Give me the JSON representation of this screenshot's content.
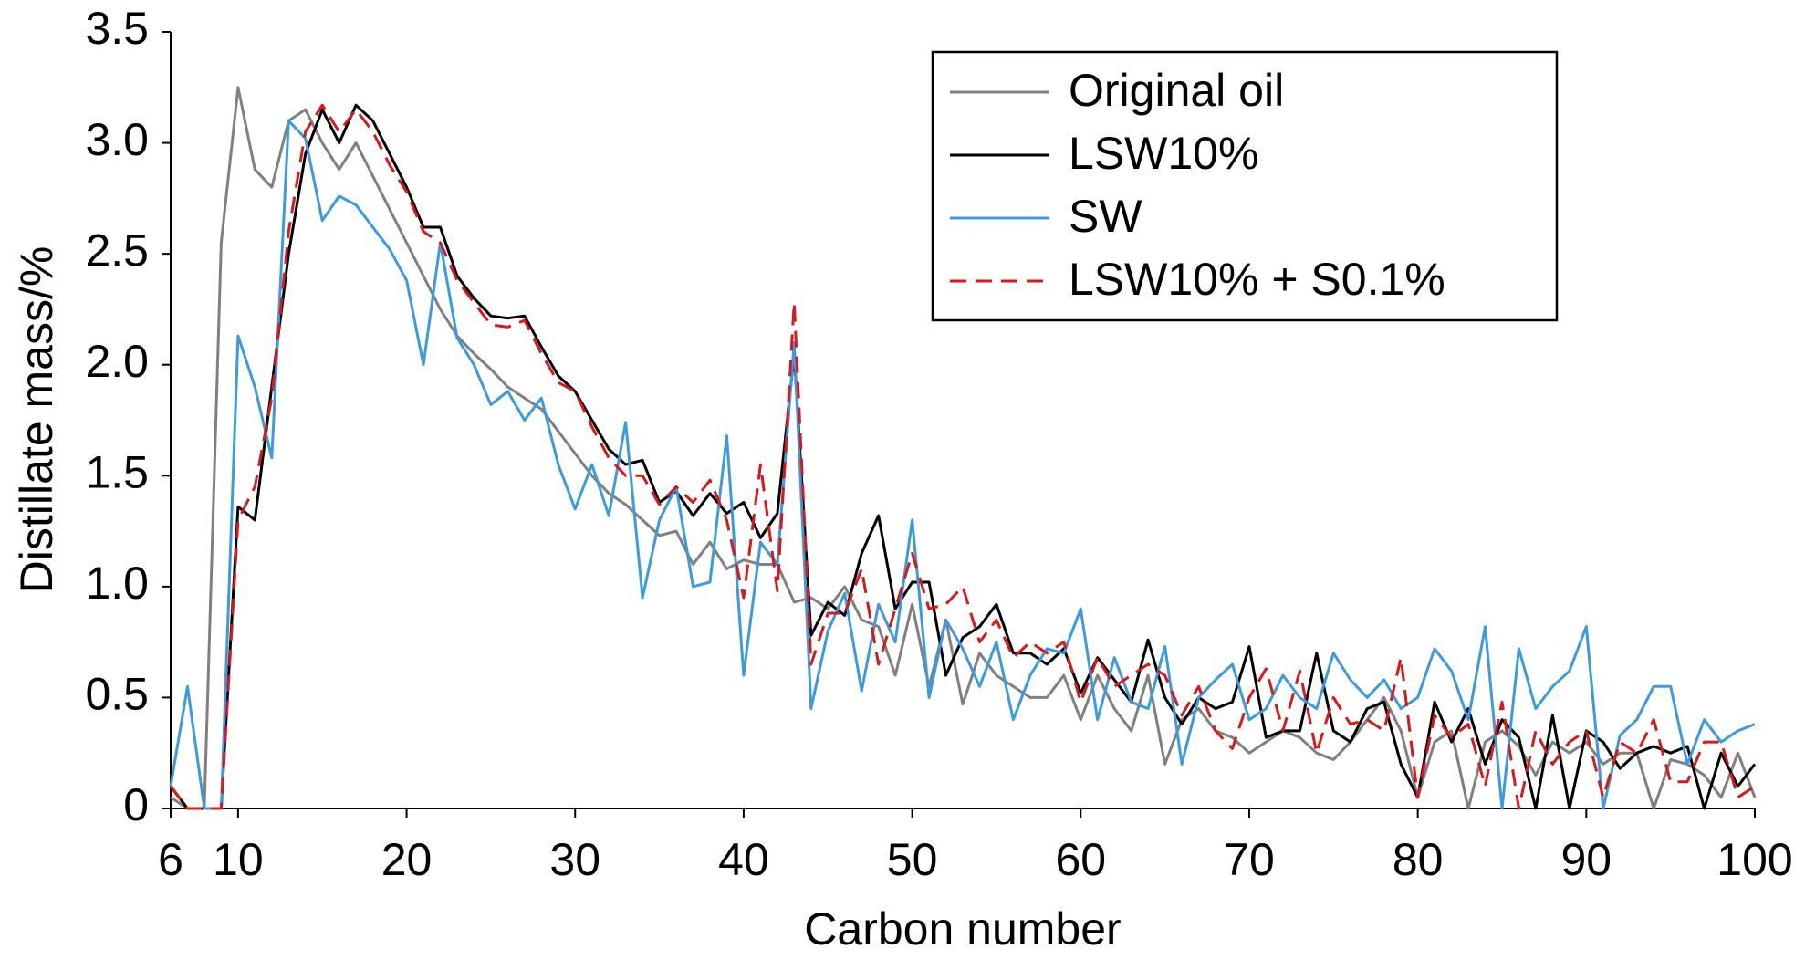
{
  "chart_data": {
    "type": "line",
    "xlabel": "Carbon number",
    "ylabel": "Distillate mass/%",
    "x": [
      6,
      7,
      8,
      9,
      10,
      11,
      12,
      13,
      14,
      15,
      16,
      17,
      18,
      19,
      20,
      21,
      22,
      23,
      24,
      25,
      26,
      27,
      28,
      29,
      30,
      31,
      32,
      33,
      34,
      35,
      36,
      37,
      38,
      39,
      40,
      41,
      42,
      43,
      44,
      45,
      46,
      47,
      48,
      49,
      50,
      51,
      52,
      53,
      54,
      55,
      56,
      57,
      58,
      59,
      60,
      61,
      62,
      63,
      64,
      65,
      66,
      67,
      68,
      69,
      70,
      71,
      72,
      73,
      74,
      75,
      76,
      77,
      78,
      79,
      80,
      81,
      82,
      83,
      84,
      85,
      86,
      87,
      88,
      89,
      90,
      91,
      92,
      93,
      94,
      95,
      96,
      97,
      98,
      99,
      100
    ],
    "xlim": [
      6,
      100
    ],
    "xticks": [
      6,
      10,
      20,
      30,
      40,
      50,
      60,
      70,
      80,
      90,
      100
    ],
    "ylim": [
      0,
      3.5
    ],
    "yticks": [
      0,
      0.5,
      {
        "value": 1,
        "label": "1.0"
      },
      1.5,
      {
        "value": 2,
        "label": "2.0"
      },
      2.5,
      {
        "value": 3,
        "label": "3.0"
      },
      3.5
    ],
    "legend": "upper right",
    "series": [
      {
        "name": "Original oil",
        "color": "#808080",
        "dash": "solid",
        "values": [
          0.05,
          0,
          0,
          2.55,
          3.25,
          2.88,
          2.8,
          3.1,
          3.15,
          3.0,
          2.88,
          3.0,
          2.85,
          2.7,
          2.55,
          2.4,
          2.25,
          2.13,
          2.05,
          1.98,
          1.9,
          1.85,
          1.8,
          1.7,
          1.6,
          1.5,
          1.42,
          1.37,
          1.3,
          1.23,
          1.25,
          1.1,
          1.2,
          1.08,
          1.12,
          1.1,
          1.1,
          0.93,
          0.95,
          0.9,
          1.0,
          0.85,
          0.82,
          0.6,
          0.92,
          0.55,
          0.85,
          0.47,
          0.7,
          0.6,
          0.55,
          0.5,
          0.5,
          0.6,
          0.4,
          0.6,
          0.45,
          0.35,
          0.6,
          0.2,
          0.4,
          0.45,
          0.35,
          0.32,
          0.25,
          0.3,
          0.35,
          0.32,
          0.25,
          0.22,
          0.3,
          0.4,
          0.5,
          0.35,
          0.05,
          0.3,
          0.35,
          0,
          0.3,
          0.35,
          0.28,
          0.15,
          0.3,
          0.25,
          0.3,
          0.2,
          0.25,
          0.25,
          0,
          0.22,
          0.2,
          0.15,
          0.05,
          0.25,
          0.05
        ]
      },
      {
        "name": "LSW10%",
        "color": "#000000",
        "dash": "solid",
        "values": [
          0.1,
          0,
          0,
          0,
          1.36,
          1.3,
          1.9,
          2.5,
          2.95,
          3.15,
          3.0,
          3.17,
          3.1,
          2.95,
          2.8,
          2.62,
          2.62,
          2.4,
          2.3,
          2.22,
          2.21,
          2.22,
          2.08,
          1.95,
          1.88,
          1.75,
          1.62,
          1.55,
          1.57,
          1.38,
          1.43,
          1.32,
          1.42,
          1.33,
          1.38,
          1.22,
          1.33,
          2.05,
          0.78,
          0.93,
          0.87,
          1.15,
          1.32,
          0.9,
          1.02,
          1.02,
          0.6,
          0.77,
          0.82,
          0.92,
          0.7,
          0.7,
          0.65,
          0.72,
          0.52,
          0.68,
          0.58,
          0.48,
          0.76,
          0.5,
          0.38,
          0.5,
          0.45,
          0.48,
          0.73,
          0.32,
          0.35,
          0.35,
          0.7,
          0.35,
          0.3,
          0.45,
          0.48,
          0.2,
          0.05,
          0.48,
          0.3,
          0.45,
          0.2,
          0.4,
          0.32,
          0,
          0.42,
          0,
          0.35,
          0.3,
          0.18,
          0.25,
          0.28,
          0.25,
          0.28,
          0,
          0.25,
          0.1,
          0.2
        ]
      },
      {
        "name": "SW",
        "color": "#3c9be0",
        "dash": "solid",
        "values": [
          0.1,
          0.55,
          0,
          0,
          2.13,
          1.9,
          1.58,
          3.1,
          3.02,
          2.65,
          2.76,
          2.72,
          2.62,
          2.52,
          2.38,
          2.0,
          2.55,
          2.12,
          2.0,
          1.82,
          1.88,
          1.75,
          1.85,
          1.55,
          1.35,
          1.55,
          1.32,
          1.74,
          0.95,
          1.3,
          1.45,
          1.0,
          1.02,
          1.68,
          0.6,
          1.2,
          1.1,
          2.1,
          0.45,
          0.8,
          0.97,
          0.53,
          0.92,
          0.75,
          1.3,
          0.5,
          0.85,
          0.72,
          0.55,
          0.75,
          0.4,
          0.6,
          0.72,
          0.7,
          0.9,
          0.4,
          0.68,
          0.48,
          0.45,
          0.73,
          0.2,
          0.5,
          0.58,
          0.65,
          0.4,
          0.45,
          0.6,
          0.5,
          0.45,
          0.7,
          0.58,
          0.5,
          0.58,
          0.45,
          0.5,
          0.72,
          0.62,
          0.4,
          0.82,
          0,
          0.72,
          0.45,
          0.55,
          0.62,
          0.82,
          0,
          0.33,
          0.4,
          0.55,
          0.55,
          0.2,
          0.4,
          0.3,
          0.35,
          0.38
        ]
      },
      {
        "name": "LSW10% + S0.1%",
        "color": "#d7191c",
        "dash": "dashed",
        "values": [
          0.1,
          0,
          0,
          0,
          1.3,
          1.45,
          1.85,
          2.6,
          3.05,
          3.17,
          3.05,
          3.15,
          3.05,
          2.9,
          2.78,
          2.6,
          2.55,
          2.38,
          2.28,
          2.18,
          2.17,
          2.2,
          2.05,
          1.92,
          1.88,
          1.72,
          1.58,
          1.5,
          1.5,
          1.37,
          1.45,
          1.38,
          1.48,
          1.3,
          0.95,
          1.55,
          0.98,
          2.28,
          0.65,
          0.88,
          0.88,
          1.08,
          0.65,
          0.9,
          1.15,
          0.9,
          0.92,
          1.0,
          0.75,
          0.85,
          0.68,
          0.75,
          0.7,
          0.75,
          0.48,
          0.68,
          0.55,
          0.6,
          0.65,
          0.6,
          0.42,
          0.55,
          0.35,
          0.27,
          0.5,
          0.63,
          0.35,
          0.62,
          0.25,
          0.5,
          0.38,
          0.4,
          0.35,
          0.68,
          0.05,
          0.42,
          0.32,
          0.38,
          0.1,
          0.48,
          0,
          0.35,
          0.2,
          0.3,
          0.35,
          0.05,
          0.3,
          0.25,
          0.4,
          0.12,
          0.12,
          0.3,
          0.3,
          0.05,
          0.1
        ]
      }
    ]
  }
}
